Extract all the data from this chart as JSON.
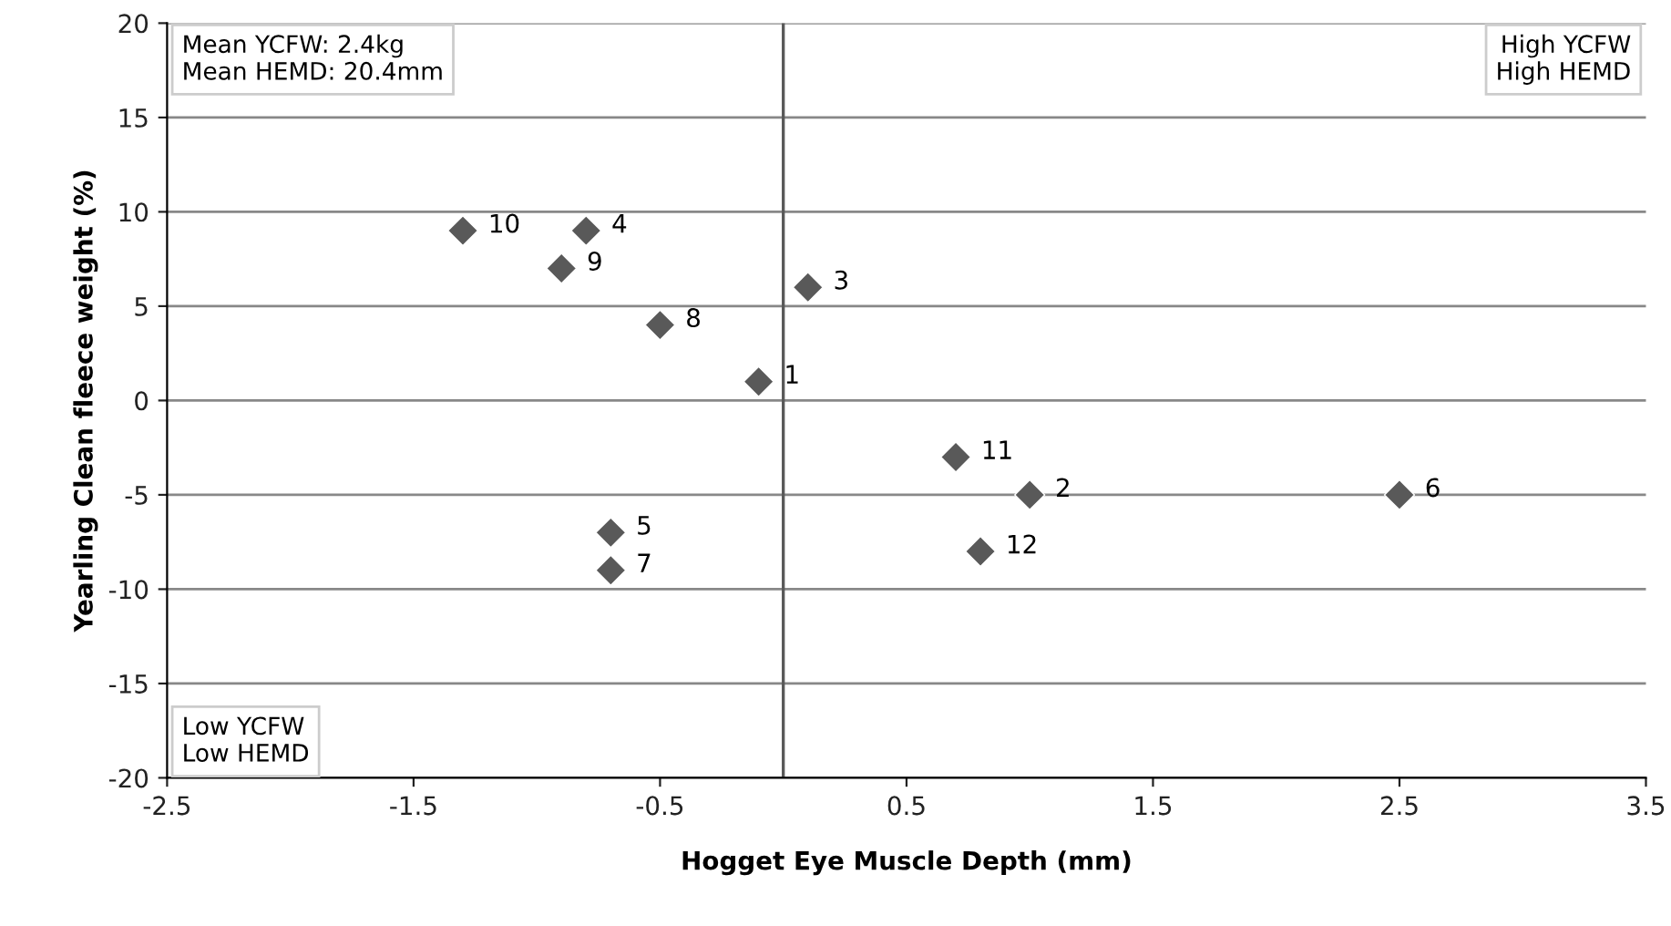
{
  "chart_data": {
    "type": "scatter",
    "xlabel": "Hogget Eye Muscle Depth (mm)",
    "ylabel": "Yearling Clean fleece weight (%)",
    "xlim": [
      -2.5,
      3.5
    ],
    "xticks": [
      -2.5,
      -1.5,
      -0.5,
      0.5,
      1.5,
      2.5,
      3.5
    ],
    "ylim": [
      -20,
      20
    ],
    "yticks": [
      -20,
      -15,
      -10,
      -5,
      0,
      5,
      10,
      15,
      20
    ],
    "grid": "y",
    "marker": "diamond",
    "legend": false,
    "series": [
      {
        "color": "#595959",
        "x": [
          -0.1,
          1.0,
          0.1,
          -0.8,
          -0.7,
          2.5,
          -0.7,
          -0.5,
          -0.9,
          -1.3,
          0.7,
          0.8
        ],
        "values": [
          1,
          -5,
          6,
          9,
          -7,
          -5,
          -9,
          4,
          7,
          9,
          -3,
          -8
        ]
      }
    ],
    "ref_lines": [
      {
        "axis": "x",
        "value": 0,
        "color": "#595959"
      }
    ],
    "annotations": [
      "Mean YCFW: 2.4kg\nMean HEMD: 20.4mm",
      "High YCFW\nHigh HEMD",
      "Low YCFW\nLow HEMD",
      {
        "text": "1",
        "x": -0.1,
        "y": 1
      },
      {
        "text": "2",
        "x": 1.0,
        "y": -5
      },
      {
        "text": "3",
        "x": 0.1,
        "y": 6
      },
      {
        "text": "4",
        "x": -0.8,
        "y": 9
      },
      {
        "text": "5",
        "x": -0.7,
        "y": -7
      },
      {
        "text": "6",
        "x": 2.5,
        "y": -5
      },
      {
        "text": "7",
        "x": -0.7,
        "y": -9
      },
      {
        "text": "8",
        "x": -0.5,
        "y": 4
      },
      {
        "text": "9",
        "x": -0.9,
        "y": 7
      },
      {
        "text": "10",
        "x": -1.3,
        "y": 9
      },
      {
        "text": "11",
        "x": 0.7,
        "y": -3
      },
      {
        "text": "12",
        "x": 0.8,
        "y": -8
      }
    ]
  }
}
